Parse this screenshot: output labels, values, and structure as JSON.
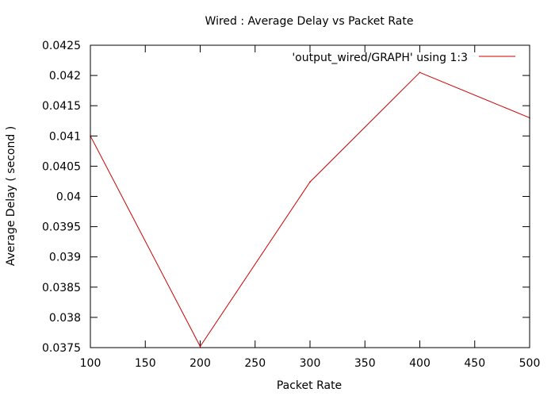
{
  "chart_data": {
    "type": "line",
    "title": "Wired : Average Delay vs Packet Rate",
    "xlabel": "Packet Rate",
    "ylabel": "Average Delay ( second )",
    "xlim": [
      100,
      500
    ],
    "ylim": [
      0.0375,
      0.0425
    ],
    "x_ticks": [
      100,
      150,
      200,
      250,
      300,
      350,
      400,
      450,
      500
    ],
    "y_ticks": [
      0.0375,
      0.038,
      0.0385,
      0.039,
      0.0395,
      0.04,
      0.0405,
      0.041,
      0.0415,
      0.042,
      0.0425
    ],
    "x_tick_labels": [
      "100",
      "150",
      "200",
      "250",
      "300",
      "350",
      "400",
      "450",
      "500"
    ],
    "y_tick_labels": [
      "0.0375",
      "0.038",
      "0.0385",
      "0.039",
      "0.0395",
      "0.04",
      "0.0405",
      "0.041",
      "0.0415",
      "0.042",
      "0.0425"
    ],
    "grid": false,
    "legend_position": "top-right",
    "series": [
      {
        "name": "'output_wired/GRAPH' using 1:3",
        "color": "#cc0000",
        "x": [
          100,
          200,
          300,
          400,
          500
        ],
        "y": [
          0.041,
          0.03752,
          0.04024,
          0.04205,
          0.0413
        ]
      }
    ]
  }
}
